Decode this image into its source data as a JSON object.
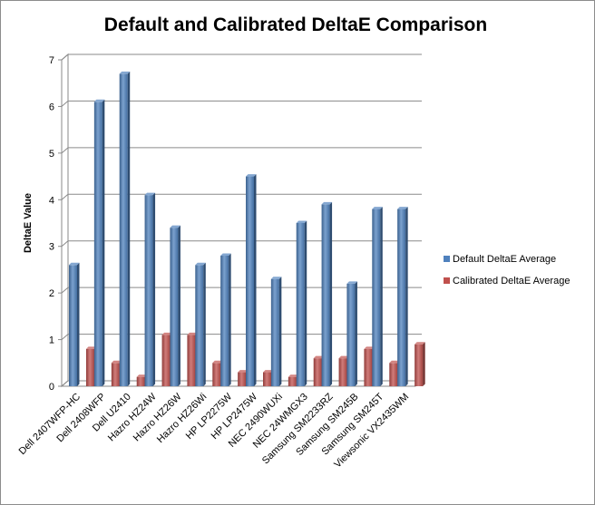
{
  "chart_data": {
    "type": "bar",
    "title": "Default and Calibrated DeltaE Comparison",
    "xlabel": "",
    "ylabel": "DeltaE Value",
    "ylim": [
      0,
      7
    ],
    "yticks": [
      0,
      1,
      2,
      3,
      4,
      5,
      6,
      7
    ],
    "grid": true,
    "legend_position": "right",
    "categories": [
      "Dell 2407WFP-HC",
      "Dell 2408WFP",
      "Dell U2410",
      "Hazro HZ24W",
      "Hazro HZ26W",
      "Hazro HZ26Wi",
      "HP LP2275W",
      "HP LP2475W",
      "NEC 2490WUXi",
      "NEC 24WMGX3",
      "Samsung SM2233RZ",
      "Samsung SM245B",
      "Samsung SM245T",
      "Viewsonic VX2435WM"
    ],
    "series": [
      {
        "name": "Default DeltaE Average",
        "color": "#4f81bd",
        "values": [
          2.6,
          6.1,
          6.7,
          4.1,
          3.4,
          2.6,
          2.8,
          4.5,
          2.3,
          3.5,
          3.9,
          2.2,
          3.8,
          3.8
        ]
      },
      {
        "name": "Calibrated DeltaE Average",
        "color": "#c0504d",
        "values": [
          0.8,
          0.5,
          0.2,
          1.1,
          1.1,
          0.5,
          0.3,
          0.3,
          0.2,
          0.6,
          0.6,
          0.8,
          0.5,
          0.9
        ]
      }
    ]
  }
}
